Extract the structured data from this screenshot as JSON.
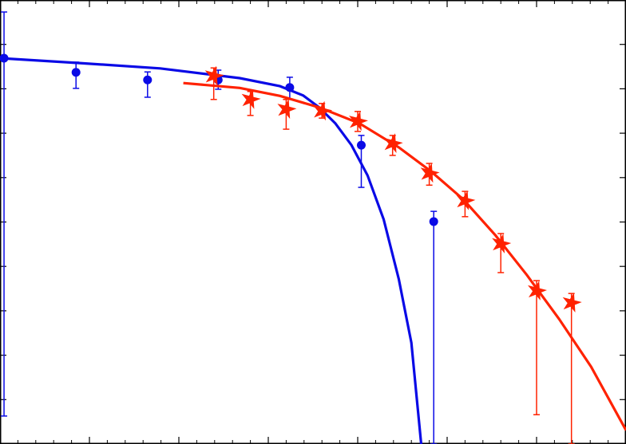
{
  "chart_data": {
    "type": "scatter",
    "xlim": [
      0,
      7
    ],
    "ylim": [
      0,
      10
    ],
    "xticks": [
      1,
      2,
      3,
      4,
      5,
      6
    ],
    "xminorticks": [
      0.2,
      0.4,
      0.6,
      0.8,
      1.2,
      1.4,
      1.6,
      1.8,
      2.2,
      2.4,
      2.6,
      2.8,
      3.2,
      3.4,
      3.6,
      3.8,
      4.2,
      4.4,
      4.6,
      4.8,
      5.2,
      5.4,
      5.6,
      5.8,
      6.2,
      6.4,
      6.6,
      6.8
    ],
    "yticks": [
      1,
      2,
      3,
      4,
      5,
      6,
      7,
      8,
      9
    ],
    "series": [
      {
        "color": "#0a0ae6",
        "marker": "circle",
        "x": [
          0.045,
          0.85,
          1.65,
          2.44,
          3.24,
          4.04,
          4.85
        ],
        "values": [
          8.69,
          8.37,
          8.2,
          8.2,
          8.03,
          6.73,
          5.01
        ],
        "ylow": [
          0.63,
          8.01,
          7.81,
          7.99,
          7.76,
          5.78,
          0
        ],
        "yhigh": [
          9.73,
          8.6,
          8.38,
          8.42,
          8.26,
          6.95,
          5.24
        ],
        "fit_x": [
          0,
          0.89,
          1.79,
          2.68,
          3.13,
          3.39,
          3.57,
          3.75,
          3.93,
          4.11,
          4.29,
          4.46,
          4.6,
          4.71
        ],
        "fit_y": [
          8.69,
          8.58,
          8.46,
          8.24,
          8.06,
          7.85,
          7.58,
          7.22,
          6.73,
          6.05,
          5.06,
          3.71,
          2.28,
          0
        ]
      },
      {
        "color": "#ff2200",
        "marker": "star",
        "x": [
          2.39,
          2.8,
          3.2,
          3.6,
          4.0,
          4.39,
          4.8,
          5.2,
          5.6,
          6.0,
          6.39
        ],
        "values": [
          8.29,
          7.76,
          7.54,
          7.5,
          7.27,
          6.77,
          6.1,
          5.48,
          4.51,
          3.45,
          3.18
        ],
        "ylow": [
          7.76,
          7.4,
          7.09,
          7.34,
          7.04,
          6.5,
          5.83,
          5.12,
          3.86,
          0.66,
          0
        ],
        "yhigh": [
          8.47,
          7.94,
          7.76,
          7.67,
          7.49,
          6.95,
          6.32,
          5.69,
          4.74,
          3.68,
          3.39
        ],
        "fit_x": [
          2.05,
          2.68,
          3.13,
          3.57,
          4.02,
          4.46,
          4.82,
          5.18,
          5.54,
          5.89,
          6.25,
          6.61,
          7.0
        ],
        "fit_y": [
          8.13,
          8.02,
          7.84,
          7.58,
          7.22,
          6.68,
          6.14,
          5.51,
          4.7,
          3.81,
          2.82,
          1.74,
          0.31
        ]
      }
    ]
  }
}
